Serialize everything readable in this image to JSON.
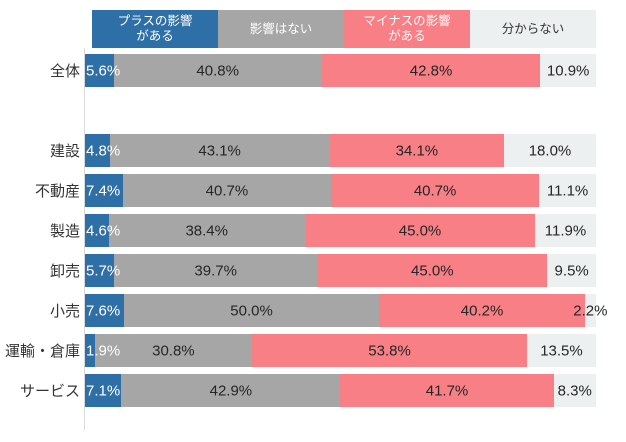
{
  "chart_data": {
    "type": "bar",
    "orientation": "horizontal-stacked",
    "value_suffix": "%",
    "xlim": [
      0,
      100
    ],
    "grid": false,
    "legend_position": "top",
    "axis_line_color": "#d9d9d9",
    "legend": [
      {
        "label": "プラスの影響がある",
        "lines": [
          "プラスの影響",
          "がある"
        ],
        "color": "#2e6fa8",
        "text_color": "#ffffff"
      },
      {
        "label": "影響はない",
        "lines": [
          "影響はない"
        ],
        "color": "#a6a6a6",
        "text_color": "#ffffff"
      },
      {
        "label": "マイナスの影響がある",
        "lines": [
          "マイナスの影響",
          "がある"
        ],
        "color": "#f87f85",
        "text_color": "#ffffff"
      },
      {
        "label": "分からない",
        "lines": [
          "分からない"
        ],
        "color": "#edf0f1",
        "text_color": "#333333"
      }
    ],
    "categories": [
      "全体",
      "建設",
      "不動産",
      "製造",
      "卸売",
      "小売",
      "運輸・倉庫",
      "サービス"
    ],
    "series": [
      {
        "name": "プラスの影響がある",
        "values": [
          5.6,
          4.8,
          7.4,
          4.6,
          5.7,
          7.6,
          1.9,
          7.1
        ]
      },
      {
        "name": "影響はない",
        "values": [
          40.8,
          43.1,
          40.7,
          38.4,
          39.7,
          50.0,
          30.8,
          42.9
        ]
      },
      {
        "name": "マイナスの影響がある",
        "values": [
          42.8,
          34.1,
          40.7,
          45.0,
          45.0,
          40.2,
          53.8,
          41.7
        ]
      },
      {
        "name": "分からない",
        "values": [
          10.9,
          18.0,
          11.1,
          11.9,
          9.5,
          2.2,
          13.5,
          8.3
        ]
      }
    ],
    "value_label_color_on_dark": "#ffffff",
    "value_label_color_on_light": "#262626",
    "gap_after_category_index": 0
  }
}
